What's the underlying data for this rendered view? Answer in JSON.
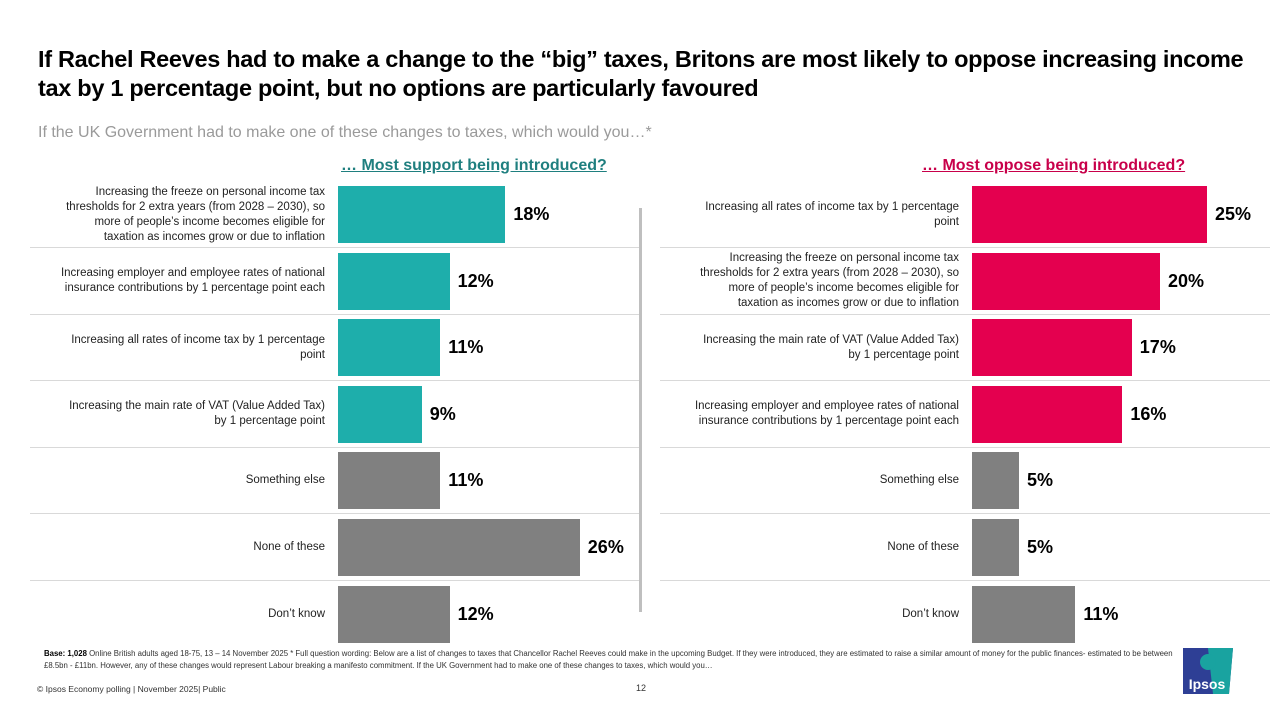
{
  "title": "If Rachel Reeves had to make a change to the “big” taxes, Britons are most likely to oppose increasing income tax by 1 percentage point, but no options are particularly favoured",
  "subtitle": "If the UK Government had to make one of these changes to taxes, which would you…*",
  "chart_data": [
    {
      "type": "bar",
      "orientation": "horizontal",
      "title": "… Most support being introduced?",
      "unit": "%",
      "xlim": [
        0,
        30
      ],
      "categories": [
        "Increasing the freeze on personal income tax thresholds for 2 extra years (from 2028 – 2030), so more of people’s income becomes eligible for taxation as incomes grow or due to inflation",
        "Increasing employer and employee rates of national insurance contributions by 1 percentage point each",
        "Increasing all rates of income tax by 1 percentage point",
        "Increasing the main rate of VAT (Value Added Tax) by 1 percentage point",
        "Something else",
        "None of these",
        "Don’t know"
      ],
      "values": [
        18,
        12,
        11,
        9,
        11,
        26,
        12
      ],
      "labels": [
        "18%",
        "12%",
        "11%",
        "9%",
        "11%",
        "26%",
        "12%"
      ],
      "colors": [
        "#1eaeab",
        "#1eaeab",
        "#1eaeab",
        "#1eaeab",
        "#808080",
        "#808080",
        "#808080"
      ]
    },
    {
      "type": "bar",
      "orientation": "horizontal",
      "title": "… Most oppose being introduced?",
      "unit": "%",
      "xlim": [
        0,
        30
      ],
      "categories": [
        "Increasing all rates of income tax by 1 percentage point",
        "Increasing the freeze on personal income tax thresholds for 2 extra years (from 2028 – 2030), so more of people’s income becomes eligible for taxation as incomes grow or due to inflation",
        "Increasing the main rate of VAT (Value Added Tax) by 1 percentage point",
        "Increasing employer and employee rates of national insurance contributions by 1 percentage point each",
        "Something else",
        "None of these",
        "Don’t know"
      ],
      "values": [
        25,
        20,
        17,
        16,
        5,
        5,
        11
      ],
      "labels": [
        "25%",
        "20%",
        "17%",
        "16%",
        "5%",
        "5%",
        "11%"
      ],
      "colors": [
        "#e4004f",
        "#e4004f",
        "#e4004f",
        "#e4004f",
        "#808080",
        "#808080",
        "#808080"
      ]
    }
  ],
  "footnote": {
    "base_label": "Base: 1,028",
    "text": " Online British adults aged 18-75, 13 – 14 November 2025 * Full question wording: Below are a list of changes to taxes that Chancellor Rachel Reeves could make in the upcoming Budget. If they were introduced, they are estimated to raise a similar amount of money for the public finances- estimated to be between £8.5bn - £11bn. However, any of these changes would represent Labour breaking a manifesto commitment. If the UK Government had to make one of these changes to taxes, which would you…"
  },
  "copyright": "© Ipsos  Economy polling | November 2025| Public",
  "page_number": "12",
  "logo_text": "Ipsos"
}
